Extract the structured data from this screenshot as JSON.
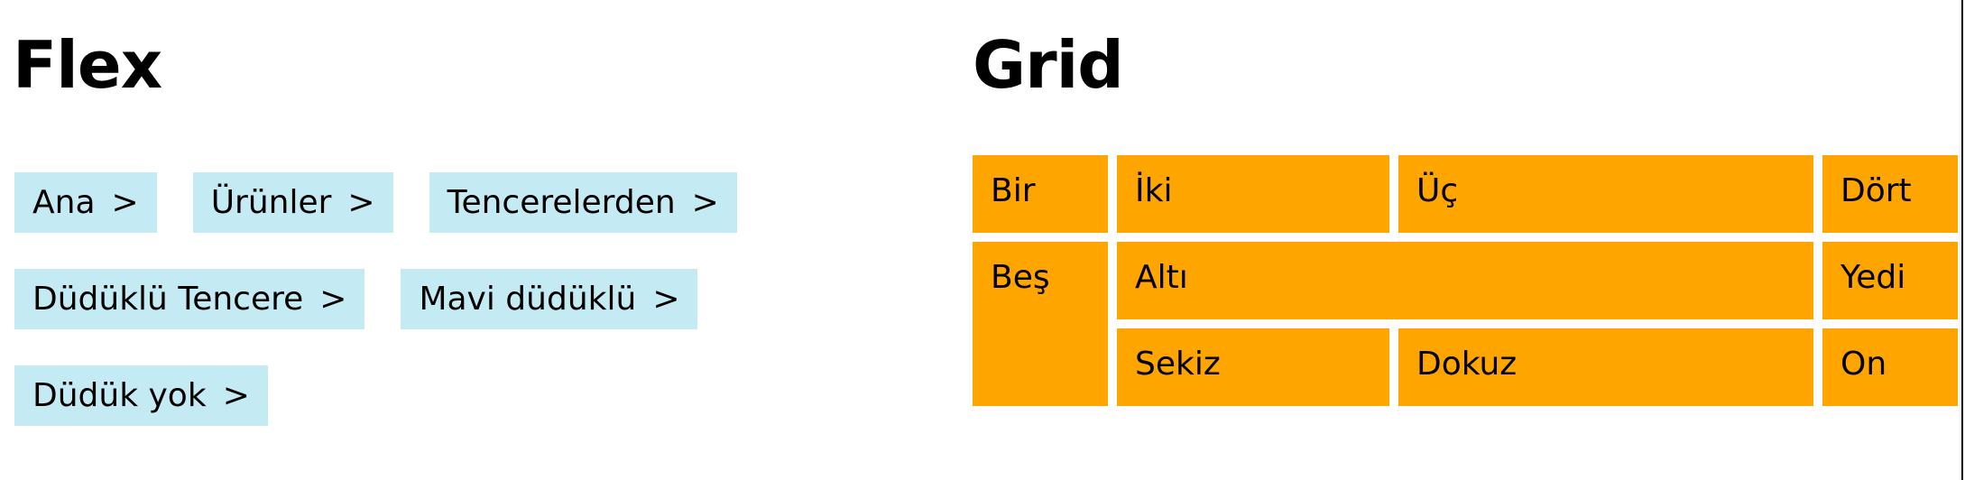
{
  "flex": {
    "title": "Flex",
    "separator": ">",
    "items": [
      {
        "label": "Ana"
      },
      {
        "label": "Ürünler"
      },
      {
        "label": "Tencerelerden"
      },
      {
        "label": "Düdüklü Tencere"
      },
      {
        "label": "Mavi düdüklü"
      },
      {
        "label": "Düdük yok"
      }
    ]
  },
  "grid": {
    "title": "Grid",
    "cells": [
      {
        "label": "Bir"
      },
      {
        "label": "İki"
      },
      {
        "label": "Üç"
      },
      {
        "label": "Dört"
      },
      {
        "label": "Beş"
      },
      {
        "label": "Altı"
      },
      {
        "label": "Yedi"
      },
      {
        "label": "Sekiz"
      },
      {
        "label": "Dokuz"
      },
      {
        "label": "On"
      }
    ]
  },
  "colors": {
    "crumb_bg": "#c4ebf3",
    "grid_cell_bg": "#ffa500"
  }
}
